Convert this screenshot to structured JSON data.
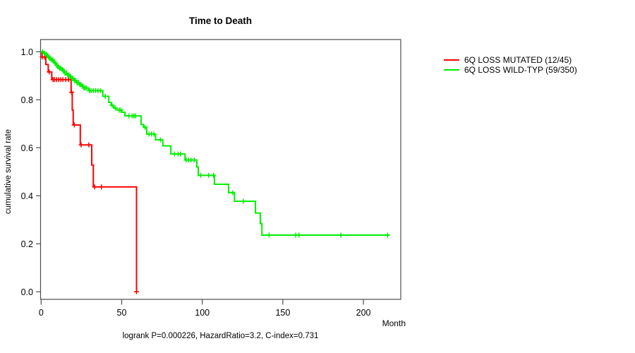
{
  "chart_data": {
    "type": "line",
    "subtype": "kaplan-meier-step",
    "title": "Time to Death",
    "xlabel": "Month",
    "ylabel": "cumulative survival rate",
    "footer": "logrank P=0.000226, HazardRatio=3.2, C-index=0.731",
    "xlim": [
      0,
      223
    ],
    "ylim": [
      0.0,
      1.0
    ],
    "xticks": [
      0,
      50,
      100,
      150,
      200
    ],
    "yticks": [
      "0.0",
      "0.2",
      "0.4",
      "0.6",
      "0.8",
      "1.0"
    ],
    "grid": false,
    "legend_position": "right-outside",
    "axis_color": "#4d4d4d",
    "text_color": "#000000",
    "series": [
      {
        "name": "6Q LOSS MUTATED (12/45)",
        "color": "#ff0000",
        "end_month": 59.2,
        "steps": [
          [
            0,
            1.0
          ],
          [
            0.5,
            0.978
          ],
          [
            2.9,
            0.947
          ],
          [
            4.4,
            0.916
          ],
          [
            6.6,
            0.884
          ],
          [
            18.6,
            0.831
          ],
          [
            19.3,
            0.757
          ],
          [
            19.9,
            0.695
          ],
          [
            24.3,
            0.612
          ],
          [
            31.4,
            0.528
          ],
          [
            32.4,
            0.437
          ],
          [
            59.2,
            0.0
          ]
        ],
        "censor_months": [
          0.7,
          2.2,
          5.0,
          7.4,
          8.3,
          9.6,
          10.9,
          12.2,
          13.5,
          15.3,
          17.0,
          18.9,
          20.6,
          24.8,
          29.6,
          33.2,
          37.4,
          59.2
        ]
      },
      {
        "name": "6Q LOSS WILD-TYP (59/350)",
        "color": "#00ee00",
        "end_month": 216,
        "steps": [
          [
            0,
            1.0
          ],
          [
            1.5,
            0.994
          ],
          [
            2.5,
            0.989
          ],
          [
            3.5,
            0.983
          ],
          [
            4.5,
            0.977
          ],
          [
            5.5,
            0.971
          ],
          [
            6.5,
            0.966
          ],
          [
            7.5,
            0.957
          ],
          [
            8.5,
            0.951
          ],
          [
            9.5,
            0.943
          ],
          [
            10.5,
            0.937
          ],
          [
            11.5,
            0.931
          ],
          [
            12.5,
            0.926
          ],
          [
            13.5,
            0.92
          ],
          [
            14.5,
            0.911
          ],
          [
            16,
            0.903
          ],
          [
            17.5,
            0.897
          ],
          [
            19,
            0.889
          ],
          [
            20.5,
            0.88
          ],
          [
            22,
            0.871
          ],
          [
            23.5,
            0.863
          ],
          [
            25,
            0.857
          ],
          [
            26.5,
            0.849
          ],
          [
            29.5,
            0.838
          ],
          [
            38.3,
            0.814
          ],
          [
            42,
            0.789
          ],
          [
            43.5,
            0.777
          ],
          [
            45,
            0.766
          ],
          [
            47,
            0.757
          ],
          [
            50,
            0.748
          ],
          [
            52,
            0.733
          ],
          [
            62,
            0.697
          ],
          [
            63.5,
            0.685
          ],
          [
            65.5,
            0.657
          ],
          [
            71,
            0.633
          ],
          [
            75.5,
            0.608
          ],
          [
            80.5,
            0.574
          ],
          [
            89.3,
            0.549
          ],
          [
            96.6,
            0.52
          ],
          [
            97.5,
            0.485
          ],
          [
            107.5,
            0.448
          ],
          [
            116.3,
            0.413
          ],
          [
            120,
            0.377
          ],
          [
            133,
            0.328
          ],
          [
            136,
            0.284
          ],
          [
            137,
            0.236
          ]
        ],
        "censor_months": [
          1,
          2.2,
          3.1,
          4,
          4.8,
          5.7,
          6.5,
          7.3,
          8.2,
          9,
          9.8,
          10.7,
          11.5,
          12.3,
          13.2,
          14,
          14.8,
          15.7,
          16.5,
          17.3,
          18.2,
          19,
          19.8,
          20.7,
          21.5,
          22.3,
          23.2,
          24,
          24.8,
          25.7,
          26.5,
          27.3,
          28.2,
          30,
          31,
          32.4,
          33.8,
          35.3,
          36.7,
          39.8,
          44,
          46,
          48.5,
          49.5,
          54.5,
          56.5,
          57.5,
          58.5,
          64.5,
          67,
          68.5,
          70,
          74,
          82.8,
          85,
          86.5,
          90,
          91.5,
          93,
          95,
          99,
          104,
          107,
          118.9,
          125.5,
          141.5,
          158,
          160,
          186,
          215
        ]
      }
    ]
  }
}
